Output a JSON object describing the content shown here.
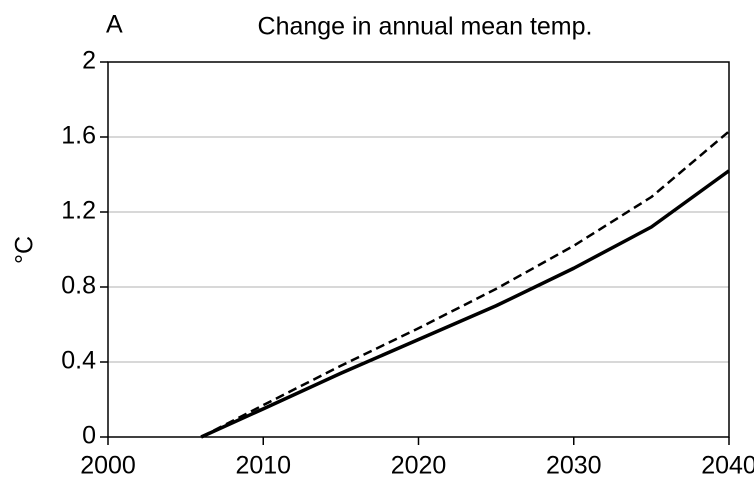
{
  "chart_data": {
    "type": "line",
    "panel": "A",
    "title": "Change in annual mean temp.",
    "ylabel": "°C",
    "x": [
      2006,
      2010,
      2015,
      2020,
      2025,
      2030,
      2035,
      2040
    ],
    "series": [
      {
        "color": "#000000",
        "linestyle": "solid",
        "values": [
          0,
          0.15,
          0.34,
          0.52,
          0.7,
          0.9,
          1.12,
          1.42
        ]
      },
      {
        "color": "#000000",
        "linestyle": "dashed",
        "values": [
          0,
          0.17,
          0.38,
          0.58,
          0.79,
          1.02,
          1.28,
          1.63
        ]
      }
    ],
    "xlim": [
      2000,
      2040
    ],
    "xticks": [
      2000,
      2010,
      2020,
      2030,
      2040
    ],
    "ylim": [
      0,
      2
    ],
    "yticks": [
      0,
      0.4,
      0.8,
      1.2,
      1.6,
      2
    ],
    "grid": true
  }
}
